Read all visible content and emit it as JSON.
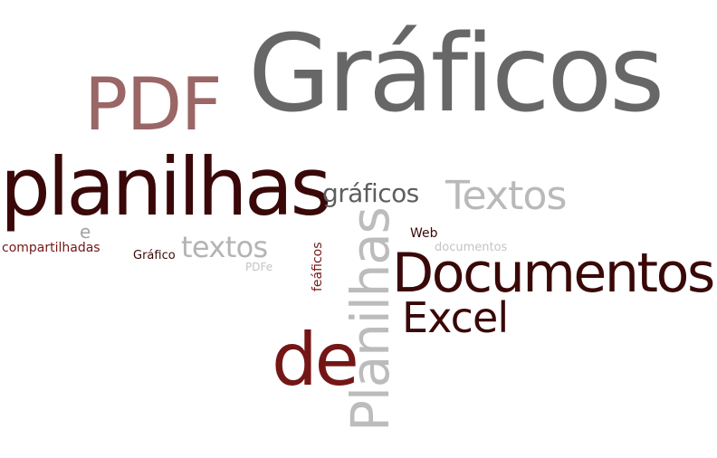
{
  "words": {
    "graficos_big": "Gráficos",
    "pdf": "PDF",
    "planilhas": "planilhas",
    "graficos_small": "gráficos",
    "textos_big": "Textos",
    "e": "e",
    "compartilhadas": "compartilhadas",
    "grafico": "Gráfico",
    "textos_small": "textos",
    "pdfe": "PDFe",
    "web": "Web",
    "documentos_small": "documentos",
    "documentos_big": "Documentos",
    "excel": "Excel",
    "de": "de",
    "feaficos": "feáficos",
    "planilhas_vertical": "Planilhas"
  },
  "colors": {
    "graficos_big": "#676767",
    "pdf": "#9a6666",
    "planilhas": "#3a0808",
    "graficos_small": "#5e5e5e",
    "textos_big": "#b9b9b9",
    "e": "#a3a3a3",
    "compartilhadas": "#741616",
    "grafico": "#3a0808",
    "textos_small": "#b4b4b4",
    "pdfe": "#c3c3c3",
    "web": "#3a0808",
    "documentos_small": "#c4c4c4",
    "documentos_big": "#3a0808",
    "excel": "#3a0808",
    "de": "#741616",
    "feaficos": "#741616",
    "planilhas_vertical": "#bcbcbc"
  }
}
